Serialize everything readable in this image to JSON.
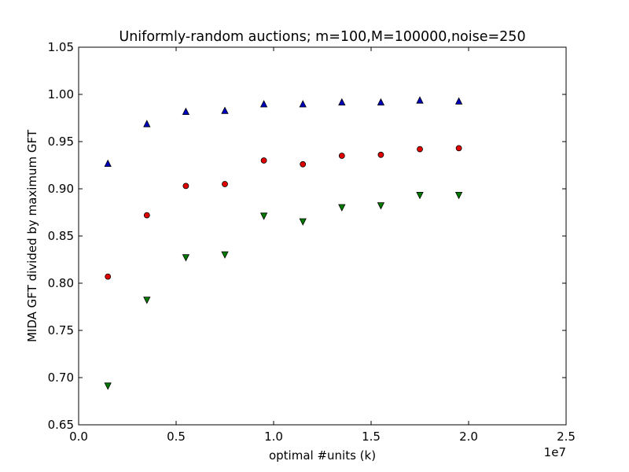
{
  "chart_data": {
    "type": "scatter",
    "title": "Uniformly-random auctions; m=100,M=100000,noise=250",
    "xlabel": "optimal #units (k)",
    "ylabel": "MIDA GFT divided by maximum GFT",
    "x_offset_label": "1e7",
    "xlim": [
      0,
      2.5
    ],
    "ylim": [
      0.65,
      1.05
    ],
    "xticks": [
      0.0,
      0.5,
      1.0,
      1.5,
      2.0,
      2.5
    ],
    "xtick_labels": [
      "0.0",
      "0.5",
      "1.0",
      "1.5",
      "2.0",
      "2.5"
    ],
    "yticks": [
      0.65,
      0.7,
      0.75,
      0.8,
      0.85,
      0.9,
      0.95,
      1.0,
      1.05
    ],
    "ytick_labels": [
      "0.65",
      "0.70",
      "0.75",
      "0.80",
      "0.85",
      "0.90",
      "0.95",
      "1.00",
      "1.05"
    ],
    "x": [
      0.15,
      0.35,
      0.55,
      0.75,
      0.95,
      1.15,
      1.35,
      1.55,
      1.75,
      1.95
    ],
    "grid": false,
    "series": [
      {
        "marker": "triangle-up",
        "color": "#0000bf",
        "values": [
          0.927,
          0.969,
          0.982,
          0.983,
          0.99,
          0.99,
          0.992,
          0.992,
          0.994,
          0.993
        ]
      },
      {
        "marker": "circle",
        "color": "#e00000",
        "values": [
          0.807,
          0.872,
          0.903,
          0.905,
          0.93,
          0.926,
          0.935,
          0.936,
          0.942,
          0.943
        ]
      },
      {
        "marker": "triangle-down",
        "color": "#007a00",
        "values": [
          0.691,
          0.782,
          0.827,
          0.83,
          0.871,
          0.865,
          0.88,
          0.882,
          0.893,
          0.893
        ]
      }
    ]
  }
}
